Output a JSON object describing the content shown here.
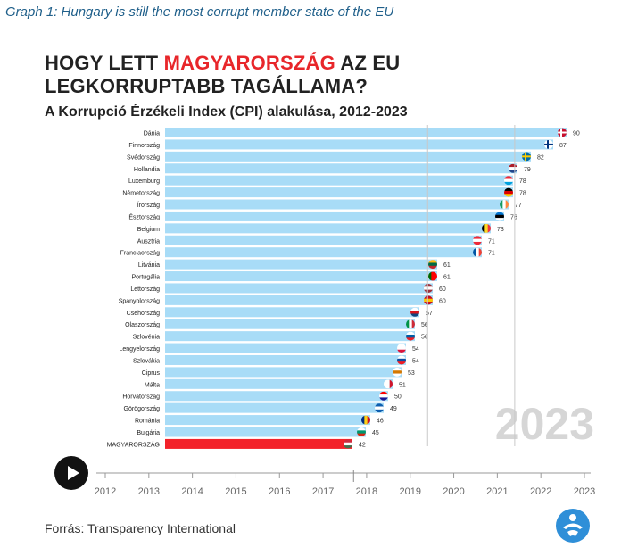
{
  "caption": "Graph 1: Hungary is still the most corrupt member state of the EU",
  "title": {
    "prefix": "HOGY LETT ",
    "highlight": "MAGYARORSZÁG",
    "suffix": " AZ EU LEGKORRUPTABB TAGÁLLAMA?"
  },
  "subtitle": "A Korrupció Érzékeli Index (CPI) alakulása, 2012-2023",
  "source": "Forrás: Transparency International",
  "controls": {
    "play_icon": "play-icon"
  },
  "logo": {
    "icon": "transparency-international-logo-icon",
    "color": "#2f8fd8"
  },
  "colors": {
    "bar": "#a8dcf7",
    "highlight_bar": "#f3222a",
    "accent": "#e8262a",
    "axis": "#666666"
  },
  "chart_data": {
    "type": "bar",
    "orientation": "horizontal",
    "year_watermark": "2023",
    "categories": [
      "Dánia",
      "Finnország",
      "Svédország",
      "Hollandia",
      "Luxemburg",
      "Németország",
      "Írország",
      "Észtország",
      "Belgium",
      "Ausztria",
      "Franciaország",
      "Litvánia",
      "Portugália",
      "Lettország",
      "Spanyolország",
      "Csehország",
      "Olaszország",
      "Szlovénia",
      "Lengyelország",
      "Szlovákia",
      "Ciprus",
      "Málta",
      "Horvátország",
      "Görögország",
      "Románia",
      "Bulgária",
      "MAGYARORSZÁG"
    ],
    "values": [
      90,
      87,
      82,
      79,
      78,
      78,
      77,
      76,
      73,
      71,
      71,
      61,
      61,
      60,
      60,
      57,
      56,
      56,
      54,
      54,
      53,
      51,
      50,
      49,
      46,
      45,
      42
    ],
    "highlight": "MAGYARORSZÁG",
    "flag_icons": [
      "flag-denmark-icon",
      "flag-finland-icon",
      "flag-sweden-icon",
      "flag-netherlands-icon",
      "flag-luxembourg-icon",
      "flag-germany-icon",
      "flag-ireland-icon",
      "flag-estonia-icon",
      "flag-belgium-icon",
      "flag-austria-icon",
      "flag-france-icon",
      "flag-lithuania-icon",
      "flag-portugal-icon",
      "flag-latvia-icon",
      "flag-spain-icon",
      "flag-czechia-icon",
      "flag-italy-icon",
      "flag-slovenia-icon",
      "flag-poland-icon",
      "flag-slovakia-icon",
      "flag-cyprus-icon",
      "flag-malta-icon",
      "flag-croatia-icon",
      "flag-greece-icon",
      "flag-romania-icon",
      "flag-bulgaria-icon",
      "flag-hungary-icon"
    ],
    "timeline": {
      "ticks": [
        "2012",
        "2013",
        "2014",
        "2015",
        "2016",
        "2017",
        "2018",
        "2019",
        "2020",
        "2021",
        "2022",
        "2023"
      ],
      "current": "2023",
      "position": 2017.7
    }
  }
}
